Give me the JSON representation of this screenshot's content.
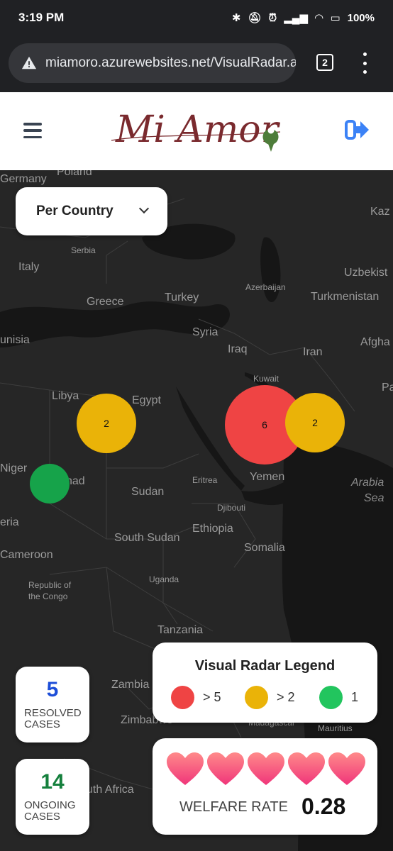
{
  "status_bar": {
    "time": "3:19 PM",
    "battery": "100%"
  },
  "browser": {
    "url": "miamoro.azurewebsites.net/VisualRadar.a",
    "tab_count": "2"
  },
  "header": {
    "logo_text": "Mi Amor"
  },
  "map": {
    "place_labels": [
      "Germany",
      "Poland",
      "Kaz",
      "Serbia",
      "Italy",
      "Uzbekist",
      "Greece",
      "Turkey",
      "Azerbaijan",
      "Turkmenistan",
      "unisia",
      "Syria",
      "Iraq",
      "Iran",
      "Afgha",
      "Kuwait",
      "Pa",
      "Libya",
      "Egypt",
      "Niger",
      "had",
      "Sudan",
      "Eritrea",
      "Yemen",
      "Arabia",
      "Sea",
      "Djibouti",
      "eria",
      "Ethiopia",
      "South Sudan",
      "Somalia",
      "Cameroon",
      "Republic of",
      "the Congo",
      "Uganda",
      "Tanzania",
      "Zambia",
      "Zimbabwe",
      "Madagascar",
      "Mauritius",
      "uth Africa"
    ],
    "clusters": [
      {
        "count": "2",
        "color": "#EAB308"
      },
      {
        "count": "6",
        "color": "#EF4444"
      },
      {
        "count": "2",
        "color": "#EAB308"
      },
      {
        "count": "",
        "color": "#16A34A"
      }
    ]
  },
  "filter": {
    "selected": "Per Country"
  },
  "stats": {
    "resolved": {
      "value": "5",
      "label": [
        "RESOLVED",
        "CASES"
      ],
      "color": "#1D4ED8"
    },
    "ongoing": {
      "value": "14",
      "label": [
        "ONGOING",
        "CASES"
      ],
      "color": "#15803D"
    }
  },
  "legend": {
    "title": "Visual Radar Legend",
    "items": [
      {
        "label": "> 5",
        "color": "#EF4444"
      },
      {
        "label": "> 2",
        "color": "#EAB308"
      },
      {
        "label": "1",
        "color": "#22C55E"
      }
    ]
  },
  "welfare": {
    "label": "WELFARE RATE",
    "value": "0.28",
    "hearts": 5
  }
}
